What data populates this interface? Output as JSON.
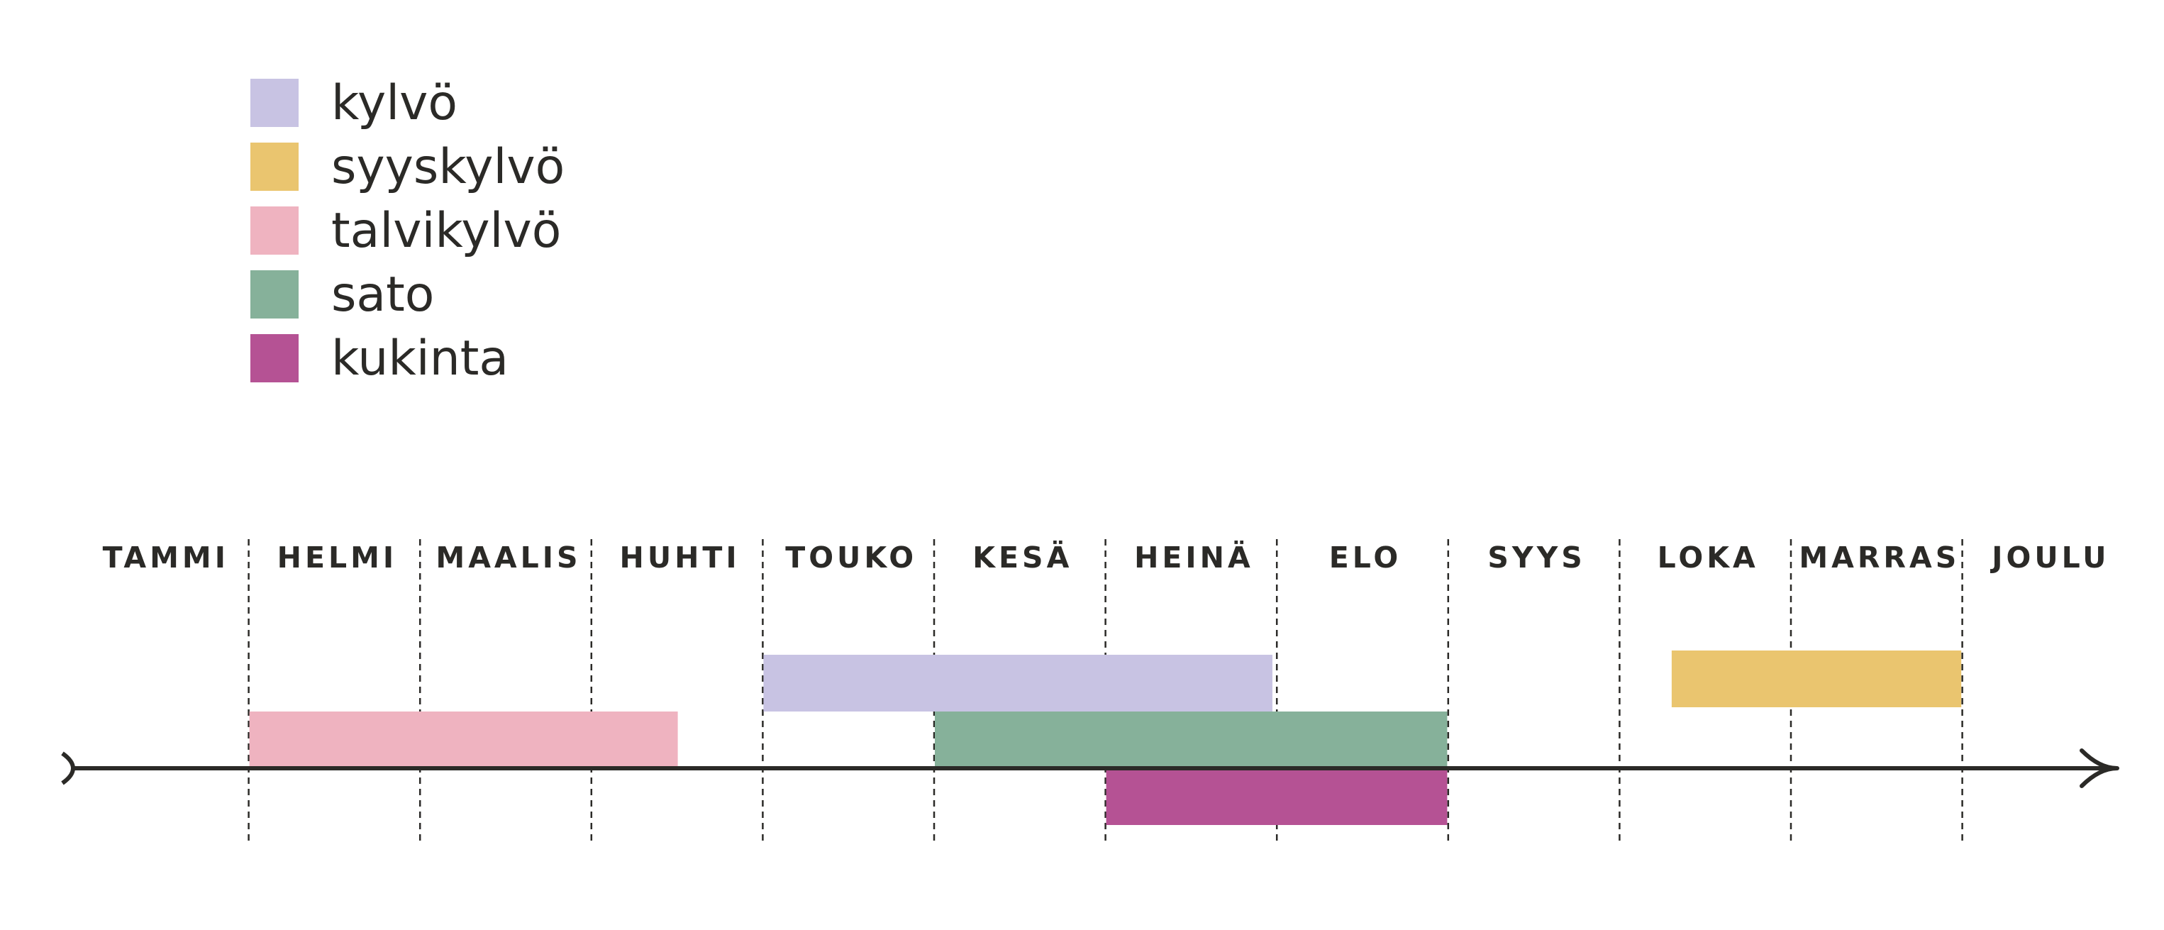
{
  "chart_data": {
    "type": "timeline",
    "months": [
      "TAMMI",
      "HELMI",
      "MAALIS",
      "HUHTI",
      "TOUKO",
      "KESÄ",
      "HEINÄ",
      "ELO",
      "SYYS",
      "LOKA",
      "MARRAS",
      "JOULU"
    ],
    "legend": [
      {
        "key": "kylvo",
        "label": "kylvö",
        "color": "#c8c3e3"
      },
      {
        "key": "syyskylvo",
        "label": "syyskylvö",
        "color": "#eac56f"
      },
      {
        "key": "talvikylvo",
        "label": "talvikylvö",
        "color": "#efb3c0"
      },
      {
        "key": "sato",
        "label": "sato",
        "color": "#86b19a"
      },
      {
        "key": "kukinta",
        "label": "kukinta",
        "color": "#b55294"
      }
    ],
    "series": [
      {
        "key": "talvikylvo",
        "start_month": 2.0,
        "end_month": 4.5
      },
      {
        "key": "kylvo",
        "start_month": 5.0,
        "end_month": 7.97
      },
      {
        "key": "syyskylvo",
        "start_month": 10.3,
        "end_month": 11.99
      },
      {
        "key": "sato",
        "start_month": 6.0,
        "end_month": 8.99
      },
      {
        "key": "kukinta",
        "start_month": 7.0,
        "end_month": 8.99
      }
    ],
    "axis_color": "#2b2a27",
    "grid": "dashed month dividers"
  }
}
